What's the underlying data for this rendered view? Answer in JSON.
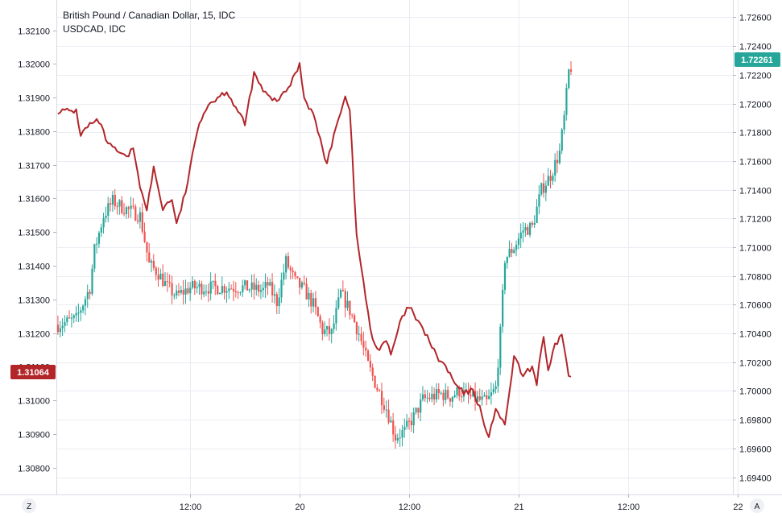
{
  "legend": {
    "title": "British Pound / Canadian Dollar, 15, IDC",
    "overlay": "USDCAD, IDC"
  },
  "corners": {
    "left_button": "Z",
    "right_button": "A"
  },
  "colors": {
    "up": "#26a69a",
    "down": "#ef5350",
    "overlay_line": "#b2262a",
    "grid": "#e9ecf2",
    "axis_text": "#131722",
    "left_badge": "#b2262a",
    "right_badge": "#26a69a"
  },
  "chart_data": {
    "type": "candlestick+line",
    "title": "British Pound / Canadian Dollar, 15, IDC",
    "x_axis": {
      "ticks": [
        "12:00",
        "20",
        "12:00",
        "21",
        "12:00",
        "22"
      ],
      "range_hours": [
        -14.67,
        59.5
      ]
    },
    "left_axis": {
      "series": "USDCAD, IDC",
      "range": [
        1.3072,
        1.3219
      ],
      "ticks": [
        "1.32100",
        "1.32000",
        "1.31900",
        "1.31800",
        "1.31700",
        "1.31600",
        "1.31500",
        "1.31400",
        "1.31300",
        "1.31200",
        "1.31100",
        "1.31000",
        "1.30900",
        "1.30800"
      ],
      "last_value_label": "1.31064"
    },
    "right_axis": {
      "series": "British Pound / Canadian Dollar, 15, IDC",
      "range": [
        1.6928,
        1.7272
      ],
      "ticks": [
        "1.72600",
        "1.72400",
        "1.72200",
        "1.72000",
        "1.71800",
        "1.71600",
        "1.71400",
        "1.71200",
        "1.71000",
        "1.70800",
        "1.70600",
        "1.70400",
        "1.70200",
        "1.70000",
        "1.69800",
        "1.69600",
        "1.69400"
      ],
      "last_value_label": "1.72261"
    },
    "gbpcad_close_anchors": [
      [
        -14.5,
        1.7046
      ],
      [
        -12.5,
        1.705
      ],
      [
        -11.0,
        1.7072
      ],
      [
        -10.5,
        1.7098
      ],
      [
        -9.5,
        1.7122
      ],
      [
        -8.5,
        1.7132
      ],
      [
        -7.5,
        1.7128
      ],
      [
        -6.5,
        1.7125
      ],
      [
        -5.5,
        1.7122
      ],
      [
        -4.5,
        1.7088
      ],
      [
        -3.5,
        1.7082
      ],
      [
        -2.5,
        1.7072
      ],
      [
        -1.5,
        1.7066
      ],
      [
        0.0,
        1.7072
      ],
      [
        3.0,
        1.7072
      ],
      [
        6.0,
        1.7072
      ],
      [
        8.0,
        1.707
      ],
      [
        8.5,
        1.7074
      ],
      [
        9.5,
        1.7062
      ],
      [
        10.5,
        1.709
      ],
      [
        11.5,
        1.7076
      ],
      [
        12.5,
        1.707
      ],
      [
        13.5,
        1.706
      ],
      [
        14.5,
        1.7042
      ],
      [
        15.5,
        1.704
      ],
      [
        16.5,
        1.7068
      ],
      [
        17.5,
        1.7056
      ],
      [
        18.5,
        1.704
      ],
      [
        19.5,
        1.7018
      ],
      [
        20.5,
        1.7002
      ],
      [
        21.5,
        1.6988
      ],
      [
        22.5,
        1.6968
      ],
      [
        23.5,
        1.6972
      ],
      [
        24.5,
        1.6982
      ],
      [
        25.5,
        1.6994
      ],
      [
        26.5,
        1.6996
      ],
      [
        27.5,
        1.6998
      ],
      [
        28.5,
        1.6996
      ],
      [
        29.5,
        1.7
      ],
      [
        30.5,
        1.6996
      ],
      [
        31.5,
        1.6994
      ],
      [
        32.5,
        1.6992
      ],
      [
        33.5,
        1.7002
      ],
      [
        34.0,
        1.704
      ],
      [
        34.5,
        1.7092
      ],
      [
        35.5,
        1.71
      ],
      [
        36.5,
        1.7112
      ],
      [
        37.5,
        1.7114
      ],
      [
        38.5,
        1.714
      ],
      [
        39.5,
        1.715
      ],
      [
        40.5,
        1.7166
      ],
      [
        41.0,
        1.719
      ],
      [
        41.5,
        1.7222
      ],
      [
        41.8,
        1.7226
      ]
    ],
    "usdcad_anchors": [
      [
        -14.5,
        1.3186
      ],
      [
        -13.5,
        1.3186
      ],
      [
        -12.5,
        1.3186
      ],
      [
        -12.0,
        1.3179
      ],
      [
        -11.0,
        1.3182
      ],
      [
        -10.0,
        1.3183
      ],
      [
        -9.0,
        1.3176
      ],
      [
        -8.0,
        1.3174
      ],
      [
        -7.0,
        1.3172
      ],
      [
        -6.2,
        1.3175
      ],
      [
        -5.5,
        1.3164
      ],
      [
        -4.8,
        1.3156
      ],
      [
        -4.0,
        1.3169
      ],
      [
        -3.0,
        1.3157
      ],
      [
        -2.0,
        1.316
      ],
      [
        -1.5,
        1.3152
      ],
      [
        -0.5,
        1.3162
      ],
      [
        1.0,
        1.3183
      ],
      [
        2.0,
        1.3188
      ],
      [
        4.0,
        1.3192
      ],
      [
        6.0,
        1.3182
      ],
      [
        7.0,
        1.3197
      ],
      [
        8.0,
        1.3192
      ],
      [
        9.0,
        1.3189
      ],
      [
        10.0,
        1.319
      ],
      [
        11.0,
        1.3194
      ],
      [
        12.0,
        1.32
      ],
      [
        12.5,
        1.319
      ],
      [
        13.5,
        1.3185
      ],
      [
        14.5,
        1.3175
      ],
      [
        15.0,
        1.317
      ],
      [
        16.0,
        1.3182
      ],
      [
        17.0,
        1.319
      ],
      [
        17.5,
        1.3187
      ],
      [
        18.2,
        1.315
      ],
      [
        19.0,
        1.3135
      ],
      [
        19.8,
        1.312
      ],
      [
        20.5,
        1.3115
      ],
      [
        21.5,
        1.3118
      ],
      [
        22.0,
        1.3113
      ],
      [
        23.0,
        1.3123
      ],
      [
        24.0,
        1.3128
      ],
      [
        25.0,
        1.3123
      ],
      [
        26.0,
        1.3119
      ],
      [
        27.0,
        1.3113
      ],
      [
        28.0,
        1.311
      ],
      [
        29.0,
        1.3105
      ],
      [
        30.0,
        1.3102
      ],
      [
        31.0,
        1.3103
      ],
      [
        32.0,
        1.3096
      ],
      [
        32.7,
        1.3088
      ],
      [
        33.5,
        1.3098
      ],
      [
        34.5,
        1.3092
      ],
      [
        35.5,
        1.3113
      ],
      [
        36.5,
        1.3107
      ],
      [
        37.5,
        1.311
      ],
      [
        38.0,
        1.3105
      ],
      [
        38.7,
        1.312
      ],
      [
        39.2,
        1.3108
      ],
      [
        40.0,
        1.3116
      ],
      [
        40.8,
        1.312
      ],
      [
        41.5,
        1.3107
      ],
      [
        41.8,
        1.31064
      ]
    ]
  }
}
